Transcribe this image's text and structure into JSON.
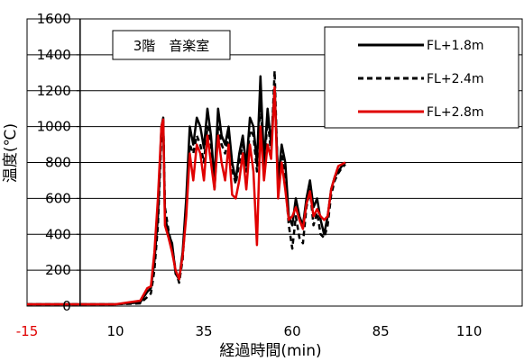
{
  "chart_data": {
    "type": "line",
    "title": "",
    "annotation": "3階　音楽室",
    "xlabel": "経過時間(min)",
    "ylabel": "温度(℃)",
    "xlim": [
      -15,
      125
    ],
    "ylim": [
      0,
      1600
    ],
    "x_ticks": [
      -15,
      10,
      35,
      60,
      85,
      110
    ],
    "x_tick_labels": [
      "-15",
      "10",
      "35",
      "60",
      "85",
      "110"
    ],
    "x_tick_colors": [
      "#e00000",
      "#000000",
      "#000000",
      "#000000",
      "#000000",
      "#000000"
    ],
    "y_ticks": [
      0,
      200,
      400,
      600,
      800,
      1000,
      1200,
      1400,
      1600
    ],
    "y_tick_labels": [
      "0",
      "200",
      "400",
      "600",
      "800",
      "1000",
      "1200",
      "1400",
      "1600"
    ],
    "grid": "horizontal",
    "legend_position": "top-right",
    "series": [
      {
        "name": "FL+1.8m",
        "color": "#000000",
        "dash": "solid",
        "x": [
          -15,
          0,
          10,
          17,
          19,
          20,
          21,
          22,
          23,
          23.5,
          24,
          25,
          26,
          27,
          28,
          29,
          30,
          31,
          32,
          33,
          34,
          35,
          36,
          37,
          38,
          39,
          40,
          41,
          42,
          43,
          44,
          45,
          46,
          47,
          48,
          49,
          50,
          51,
          52,
          53,
          54,
          55,
          56,
          57,
          58,
          59,
          60,
          61,
          62,
          63,
          64,
          65,
          66,
          67,
          68,
          69,
          70,
          71,
          72,
          73,
          74,
          75
        ],
        "y": [
          10,
          10,
          10,
          20,
          80,
          100,
          250,
          500,
          1000,
          1050,
          500,
          400,
          350,
          180,
          150,
          300,
          600,
          1000,
          900,
          1050,
          1000,
          880,
          1100,
          950,
          700,
          1100,
          950,
          900,
          1000,
          800,
          700,
          850,
          950,
          780,
          1050,
          1000,
          800,
          1280,
          800,
          1100,
          900,
          1210,
          700,
          900,
          800,
          500,
          450,
          600,
          500,
          450,
          600,
          700,
          550,
          600,
          480,
          400,
          500,
          650,
          720,
          750,
          780,
          800
        ]
      },
      {
        "name": "FL+2.4m",
        "color": "#000000",
        "dash": "dashed",
        "x": [
          -15,
          0,
          10,
          17,
          19,
          20,
          21,
          22,
          23,
          23.5,
          24,
          25,
          26,
          27,
          28,
          29,
          30,
          31,
          32,
          33,
          34,
          35,
          36,
          37,
          38,
          39,
          40,
          41,
          42,
          43,
          44,
          45,
          46,
          47,
          48,
          49,
          50,
          51,
          52,
          53,
          54,
          55,
          56,
          57,
          58,
          59,
          60,
          61,
          62,
          63,
          64,
          65,
          66,
          67,
          68,
          69,
          70,
          71,
          72,
          73,
          74,
          75
        ],
        "y": [
          10,
          10,
          10,
          15,
          50,
          70,
          200,
          450,
          950,
          1030,
          550,
          420,
          330,
          200,
          130,
          260,
          550,
          900,
          850,
          950,
          900,
          800,
          1000,
          900,
          650,
          1000,
          900,
          850,
          950,
          760,
          680,
          800,
          900,
          750,
          980,
          950,
          750,
          1150,
          750,
          1050,
          850,
          1310,
          650,
          850,
          700,
          450,
          320,
          500,
          380,
          350,
          550,
          650,
          450,
          520,
          400,
          380,
          450,
          620,
          700,
          740,
          770,
          790
        ]
      },
      {
        "name": "FL+2.8m",
        "color": "#e00000",
        "dash": "solid",
        "x": [
          -15,
          0,
          10,
          17,
          19,
          20,
          21,
          22,
          23,
          23.5,
          24,
          25,
          26,
          27,
          28,
          29,
          30,
          31,
          32,
          33,
          34,
          35,
          36,
          37,
          38,
          39,
          40,
          41,
          42,
          43,
          44,
          45,
          46,
          47,
          48,
          49,
          50,
          51,
          52,
          53,
          54,
          55,
          56,
          57,
          58,
          59,
          60,
          61,
          62,
          63,
          64,
          65,
          66,
          67,
          68,
          69,
          70,
          71,
          72,
          73,
          74,
          75
        ],
        "y": [
          10,
          10,
          10,
          30,
          100,
          110,
          300,
          600,
          1000,
          1040,
          450,
          380,
          300,
          200,
          150,
          280,
          500,
          850,
          700,
          900,
          850,
          700,
          950,
          800,
          650,
          950,
          800,
          700,
          900,
          620,
          600,
          700,
          850,
          650,
          900,
          750,
          340,
          1000,
          700,
          900,
          820,
          1220,
          600,
          800,
          650,
          480,
          500,
          550,
          480,
          430,
          570,
          640,
          500,
          540,
          500,
          480,
          500,
          650,
          720,
          780,
          790,
          800
        ]
      }
    ]
  }
}
